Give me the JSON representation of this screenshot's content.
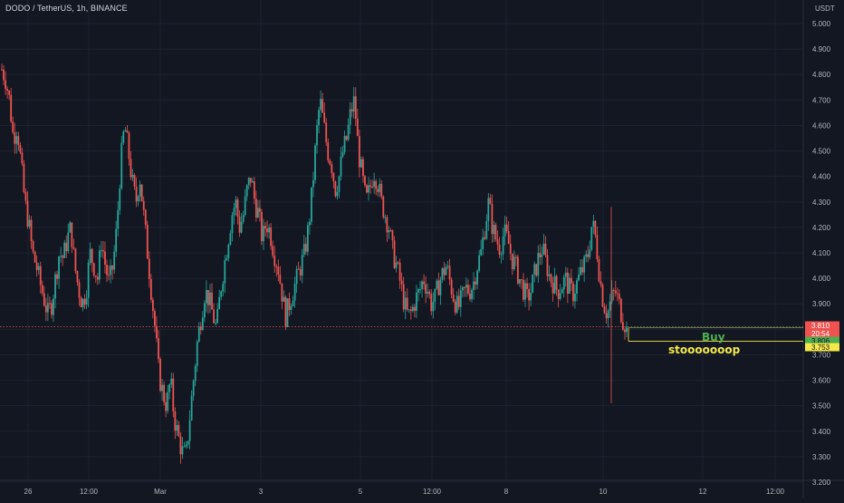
{
  "header": {
    "title": "DODO / TetherUS, 1h, BINANCE"
  },
  "chart_data": {
    "type": "candlestick",
    "symbol": "DODO / TetherUS",
    "interval": "1h",
    "exchange": "BINANCE",
    "currency": "USDT",
    "ylim": [
      3.2,
      5.05
    ],
    "y_ticks": [
      "5.000",
      "4.900",
      "4.800",
      "4.700",
      "4.600",
      "4.500",
      "4.400",
      "4.300",
      "4.200",
      "4.100",
      "4.000",
      "3.900",
      "3.800",
      "3.700",
      "3.600",
      "3.500",
      "3.400",
      "3.300",
      "3.200"
    ],
    "x_ticks": [
      "26",
      "12:00",
      "Mar",
      "3",
      "5",
      "12:00",
      "8",
      "10",
      "12",
      "12:00"
    ],
    "close_path": [
      4.82,
      4.78,
      4.7,
      4.55,
      4.6,
      4.45,
      4.3,
      4.22,
      4.1,
      4.05,
      3.98,
      3.92,
      3.86,
      3.9,
      4.0,
      4.1,
      4.08,
      4.15,
      4.2,
      4.05,
      3.96,
      3.9,
      3.95,
      4.1,
      4.05,
      4.0,
      4.15,
      4.05,
      3.98,
      4.05,
      4.2,
      4.45,
      4.6,
      4.5,
      4.38,
      4.3,
      4.4,
      4.25,
      4.1,
      3.95,
      3.8,
      3.62,
      3.55,
      3.5,
      3.6,
      3.45,
      3.38,
      3.32,
      3.3,
      3.45,
      3.6,
      3.75,
      3.85,
      3.95,
      3.92,
      3.86,
      3.8,
      3.95,
      4.05,
      4.15,
      4.25,
      4.3,
      4.2,
      4.25,
      4.35,
      4.4,
      4.3,
      4.25,
      4.15,
      4.22,
      4.18,
      4.1,
      4.05,
      3.95,
      3.85,
      3.9,
      3.95,
      4.0,
      4.05,
      4.1,
      4.2,
      4.35,
      4.55,
      4.7,
      4.6,
      4.5,
      4.45,
      4.35,
      4.4,
      4.5,
      4.55,
      4.65,
      4.7,
      4.5,
      4.4,
      4.3,
      4.35,
      4.42,
      4.38,
      4.3,
      4.25,
      4.2,
      4.1,
      4.05,
      3.98,
      3.9,
      3.85,
      3.87,
      3.92,
      3.95,
      4.0,
      3.96,
      3.9,
      3.92,
      3.98,
      4.02,
      4.05,
      3.98,
      3.92,
      3.88,
      3.92,
      3.96,
      3.95,
      3.98,
      4.05,
      4.1,
      4.2,
      4.3,
      4.2,
      4.15,
      4.12,
      4.18,
      4.15,
      4.08,
      4.05,
      4.0,
      3.96,
      3.92,
      3.95,
      4.02,
      4.08,
      4.12,
      4.06,
      4.0,
      3.98,
      3.95,
      3.97,
      4.0,
      3.96,
      3.94,
      3.98,
      4.02,
      4.05,
      4.1,
      4.22,
      4.15,
      4.0,
      3.9,
      3.86,
      3.92,
      3.95,
      3.9,
      3.84,
      3.81
    ],
    "current_price": "3.810",
    "countdown": "20:54",
    "buy_level": "3.806",
    "stop_level": "3.753",
    "annotations": {
      "buy": "Buy",
      "stop": "stooooooop"
    },
    "colors": {
      "background": "#131722",
      "up": "#26a69a",
      "down": "#ef5350",
      "buy": "#4caf50",
      "stop": "#f5e94a",
      "grid": "#1e2230"
    }
  }
}
